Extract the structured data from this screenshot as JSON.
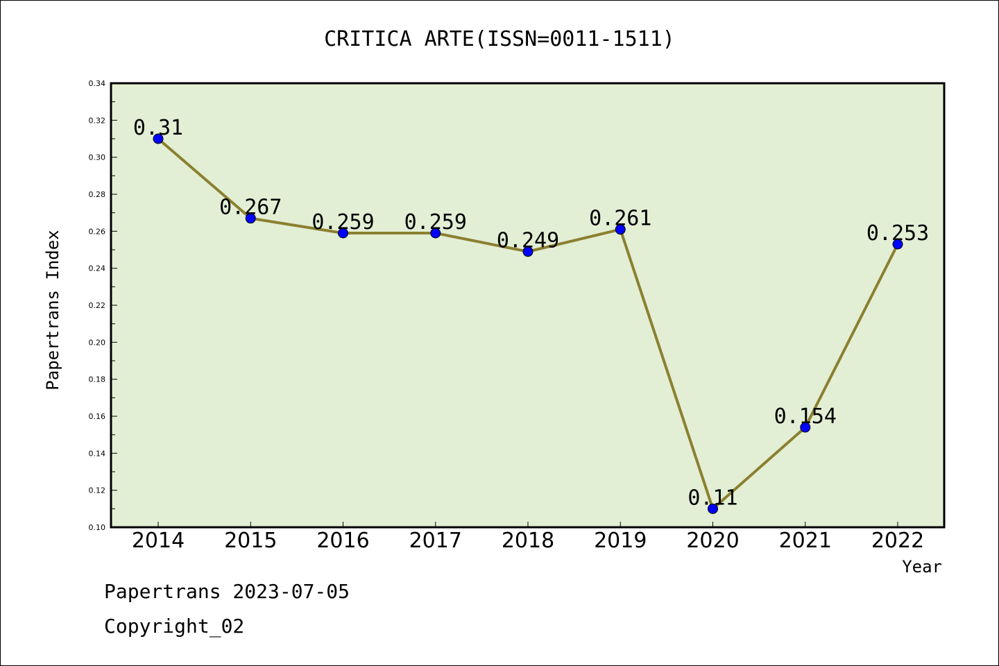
{
  "chart_data": {
    "type": "line",
    "title": "CRITICA ARTE(ISSN=0011-1511)",
    "xlabel": "Year",
    "ylabel": "Papertrans Index",
    "categories": [
      "2014",
      "2015",
      "2016",
      "2017",
      "2018",
      "2019",
      "2020",
      "2021",
      "2022"
    ],
    "series": [
      {
        "values": [
          0.31,
          0.267,
          0.259,
          0.259,
          0.249,
          0.261,
          0.11,
          0.154,
          0.253
        ],
        "labels": [
          "0.31",
          "0.267",
          "0.259",
          "0.259",
          "0.249",
          "0.261",
          "0.11",
          "0.154",
          "0.253"
        ]
      }
    ],
    "ylim": [
      0.1,
      0.34
    ],
    "yticks": [
      "0.10",
      "0.12",
      "0.14",
      "0.16",
      "0.18",
      "0.20",
      "0.22",
      "0.24",
      "0.26",
      "0.28",
      "0.30",
      "0.32",
      "0.34"
    ],
    "grid": false,
    "legend": "none",
    "colors": {
      "plot_background": "#e2efd5",
      "line": "#8b8030",
      "marker": "#0000ff"
    }
  },
  "footer": {
    "date_line": "Papertrans 2023-07-05",
    "copyright": "Copyright_02"
  }
}
